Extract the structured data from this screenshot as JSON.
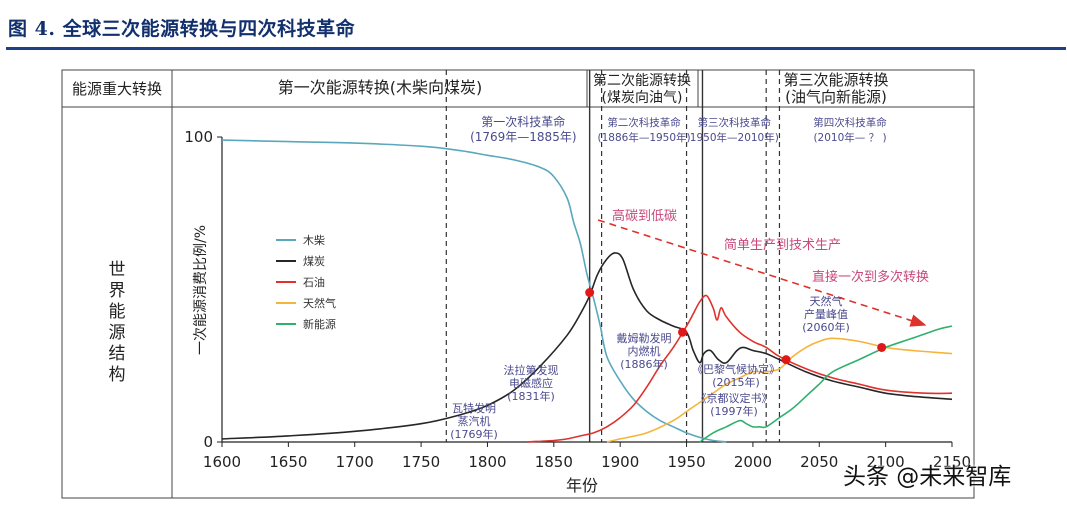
{
  "figure": {
    "title": "图 4. 全球三次能源转换与四次科技革命"
  },
  "watermark": "头条 @未来智库",
  "table": {
    "header_label": "能源重大转换",
    "row_label": "世界能源结构",
    "transitions": [
      {
        "line1": "第一次能源转换(木柴向煤炭)",
        "line2": ""
      },
      {
        "line1": "第二次能源转换",
        "line2": "(煤炭向油气)"
      },
      {
        "line1": "第三次能源转换",
        "line2": "(油气向新能源)"
      }
    ]
  },
  "revolutions": [
    {
      "name": "第一次科技革命",
      "period": "(1769年—1885年)",
      "start": 1769,
      "end": 1885
    },
    {
      "name": "第二次科技革命",
      "period": "(1886年—1950年)",
      "start": 1886,
      "end": 1950
    },
    {
      "name": "第三次科技革命",
      "period": "1950年—2010年)",
      "start": 1950,
      "end": 2010
    },
    {
      "name": "第四次科技革命",
      "period": "(2010年— ？ )",
      "start": 2010,
      "end": null
    }
  ],
  "arrow_labels": [
    "高碳到低碳",
    "简单生产到技术生产",
    "直接一次到多次转换"
  ],
  "annotations": [
    {
      "lines": [
        "瓦特发明",
        "蒸汽机",
        "(1769年)"
      ],
      "year": 1769
    },
    {
      "lines": [
        "法拉第发现",
        "电磁感应",
        "(1831年)"
      ],
      "year": 1831
    },
    {
      "lines": [
        "戴姆勒发明",
        "内燃机",
        "(1886年)"
      ],
      "year": 1886
    },
    {
      "lines": [
        "《巴黎气候协定》",
        "(2015年)"
      ],
      "year": 2015
    },
    {
      "lines": [
        "《京都议定书》",
        "(1997年)"
      ],
      "year": 1997
    },
    {
      "lines": [
        "天然气",
        "产量峰值",
        "(2060年)"
      ],
      "year": 2060
    }
  ],
  "chart_data": {
    "type": "line",
    "xlabel": "年份",
    "ylabel": "一次能源消费比例/%",
    "xlim": [
      1600,
      2150
    ],
    "ylim": [
      0,
      100
    ],
    "x_ticks": [
      1600,
      1650,
      1700,
      1750,
      1800,
      1850,
      1900,
      1950,
      2000,
      2050,
      2100,
      2150
    ],
    "y_ticks": [
      0,
      100
    ],
    "legend_position": "left",
    "grid": false,
    "series": [
      {
        "name": "木柴",
        "color": "#5aa8bd",
        "points": [
          [
            1600,
            99
          ],
          [
            1650,
            98.5
          ],
          [
            1700,
            98
          ],
          [
            1750,
            97
          ],
          [
            1780,
            95.5
          ],
          [
            1800,
            94
          ],
          [
            1820,
            92.5
          ],
          [
            1840,
            90
          ],
          [
            1850,
            87
          ],
          [
            1860,
            80
          ],
          [
            1865,
            72
          ],
          [
            1870,
            65
          ],
          [
            1875,
            55
          ],
          [
            1880,
            47
          ],
          [
            1885,
            38
          ],
          [
            1890,
            28
          ],
          [
            1900,
            20
          ],
          [
            1910,
            14
          ],
          [
            1920,
            10
          ],
          [
            1930,
            7
          ],
          [
            1940,
            5
          ],
          [
            1950,
            3
          ],
          [
            1960,
            1.5
          ],
          [
            1970,
            0.5
          ],
          [
            1980,
            0
          ]
        ]
      },
      {
        "name": "煤炭",
        "color": "#262626",
        "points": [
          [
            1600,
            1
          ],
          [
            1650,
            2
          ],
          [
            1700,
            3.5
          ],
          [
            1750,
            6
          ],
          [
            1780,
            9
          ],
          [
            1800,
            12
          ],
          [
            1820,
            17
          ],
          [
            1840,
            25
          ],
          [
            1860,
            35
          ],
          [
            1870,
            42
          ],
          [
            1877,
            48
          ],
          [
            1883,
            55
          ],
          [
            1890,
            60
          ],
          [
            1896,
            62
          ],
          [
            1902,
            60
          ],
          [
            1910,
            50
          ],
          [
            1920,
            43
          ],
          [
            1930,
            40
          ],
          [
            1940,
            38
          ],
          [
            1950,
            36
          ],
          [
            1955,
            30
          ],
          [
            1960,
            26
          ],
          [
            1963,
            29
          ],
          [
            1968,
            30
          ],
          [
            1974,
            27
          ],
          [
            1980,
            26
          ],
          [
            1988,
            30
          ],
          [
            1993,
            31
          ],
          [
            2000,
            30
          ],
          [
            2010,
            29
          ],
          [
            2020,
            27
          ],
          [
            2040,
            23
          ],
          [
            2060,
            20
          ],
          [
            2080,
            18
          ],
          [
            2100,
            16
          ],
          [
            2120,
            15
          ],
          [
            2150,
            14
          ]
        ]
      },
      {
        "name": "石油",
        "color": "#e0322c",
        "points": [
          [
            1830,
            0
          ],
          [
            1850,
            0.5
          ],
          [
            1860,
            1
          ],
          [
            1870,
            2
          ],
          [
            1880,
            3
          ],
          [
            1890,
            5
          ],
          [
            1900,
            8
          ],
          [
            1910,
            12
          ],
          [
            1920,
            18
          ],
          [
            1930,
            25
          ],
          [
            1940,
            31
          ],
          [
            1950,
            38
          ],
          [
            1955,
            42
          ],
          [
            1960,
            46
          ],
          [
            1965,
            48
          ],
          [
            1970,
            44
          ],
          [
            1973,
            40
          ],
          [
            1976,
            44
          ],
          [
            1980,
            41
          ],
          [
            1990,
            36
          ],
          [
            2000,
            33
          ],
          [
            2010,
            31
          ],
          [
            2020,
            28
          ],
          [
            2040,
            24
          ],
          [
            2060,
            21
          ],
          [
            2080,
            19
          ],
          [
            2100,
            17
          ],
          [
            2130,
            16
          ],
          [
            2150,
            16
          ]
        ]
      },
      {
        "name": "天然气",
        "color": "#f5b43a",
        "points": [
          [
            1890,
            0
          ],
          [
            1900,
            1
          ],
          [
            1920,
            3
          ],
          [
            1940,
            7
          ],
          [
            1950,
            10
          ],
          [
            1960,
            13
          ],
          [
            1970,
            16
          ],
          [
            1980,
            19
          ],
          [
            1990,
            21
          ],
          [
            2000,
            23
          ],
          [
            2010,
            23
          ],
          [
            2020,
            24
          ],
          [
            2030,
            28
          ],
          [
            2040,
            31
          ],
          [
            2050,
            33
          ],
          [
            2060,
            34
          ],
          [
            2080,
            33
          ],
          [
            2100,
            31
          ],
          [
            2120,
            30
          ],
          [
            2150,
            29
          ]
        ]
      },
      {
        "name": "新能源",
        "color": "#2fb16e",
        "points": [
          [
            1960,
            0
          ],
          [
            1970,
            3
          ],
          [
            1980,
            5
          ],
          [
            1990,
            7
          ],
          [
            1995,
            6
          ],
          [
            2000,
            5
          ],
          [
            2005,
            5
          ],
          [
            2010,
            5
          ],
          [
            2020,
            8
          ],
          [
            2030,
            11
          ],
          [
            2040,
            15
          ],
          [
            2050,
            19
          ],
          [
            2060,
            23
          ],
          [
            2080,
            27
          ],
          [
            2100,
            31
          ],
          [
            2120,
            34
          ],
          [
            2140,
            37
          ],
          [
            2150,
            38
          ]
        ]
      }
    ],
    "intersections": [
      {
        "year": 1877,
        "value": 49
      },
      {
        "year": 1947,
        "value": 36
      },
      {
        "year": 2025,
        "value": 27
      },
      {
        "year": 2097,
        "value": 31
      }
    ],
    "vertical_lines": [
      {
        "year": 1769,
        "style": "dashed"
      },
      {
        "year": 1877,
        "style": "solid"
      },
      {
        "year": 1886,
        "style": "dashed"
      },
      {
        "year": 1950,
        "style": "dashed"
      },
      {
        "year": 1962,
        "style": "solid"
      },
      {
        "year": 2010,
        "style": "dashed"
      },
      {
        "year": 2020,
        "style": "dashed"
      }
    ]
  }
}
